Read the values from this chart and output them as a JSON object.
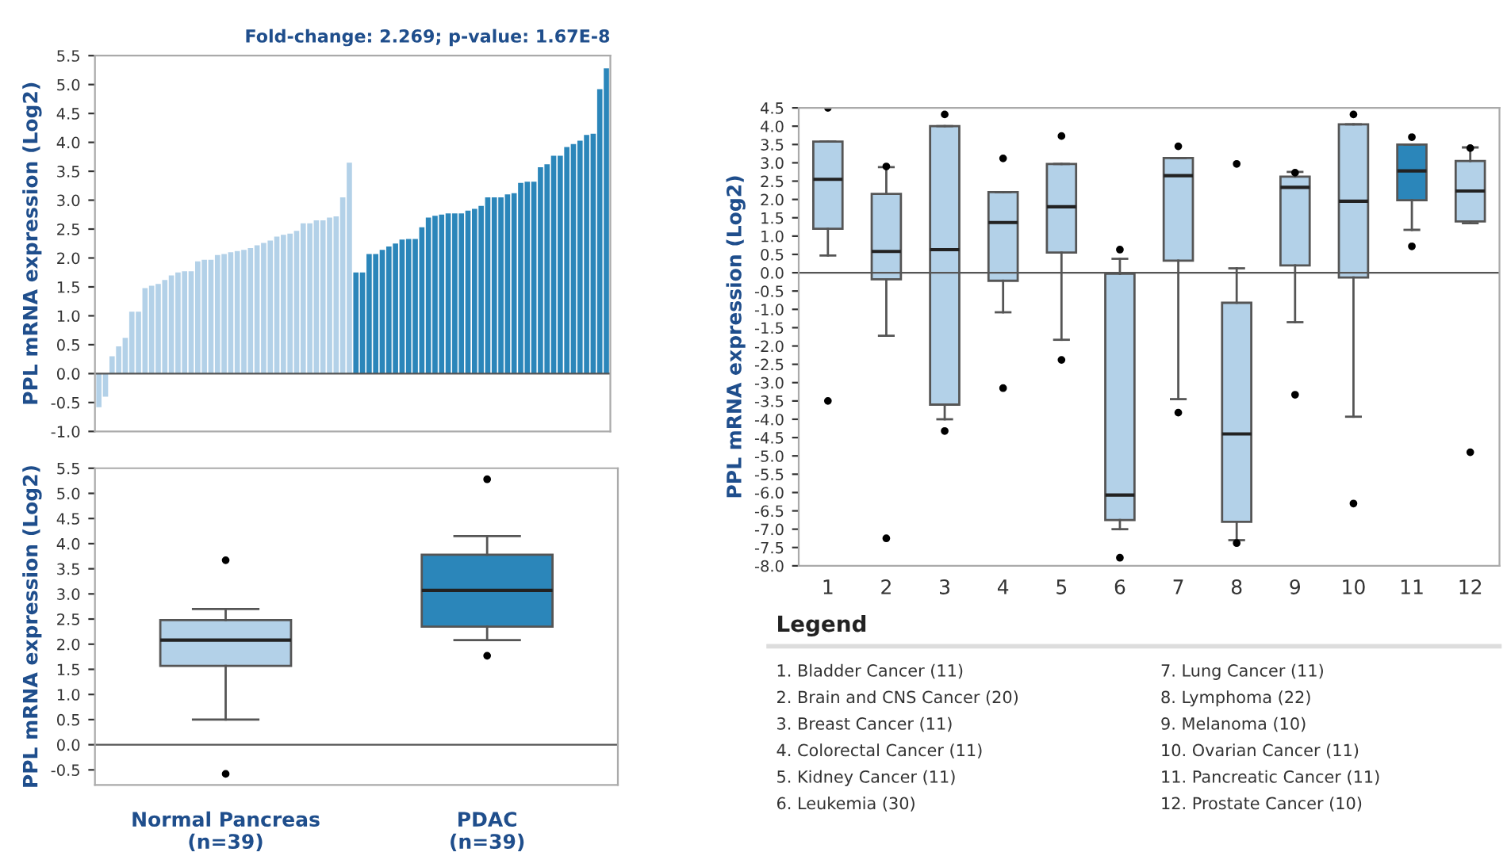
{
  "chart_data": [
    {
      "type": "bar",
      "title": "Fold-change: 2.269; p-value: 1.67E-8",
      "ylabel": "PPL mRNA expression (Log2)",
      "categories": [
        null,
        null,
        null,
        null,
        null,
        null,
        null,
        null,
        null,
        null,
        null,
        null,
        null,
        null,
        null,
        null,
        null,
        null,
        null,
        null,
        null,
        null,
        null,
        null,
        null,
        null,
        null,
        null,
        null,
        null,
        null,
        null,
        null,
        null,
        null,
        null,
        null,
        null,
        null,
        null,
        null,
        null,
        null,
        null,
        null,
        null,
        null,
        null,
        null,
        null,
        null,
        null,
        null,
        null,
        null,
        null,
        null,
        null,
        null,
        null,
        null,
        null,
        null,
        null,
        null,
        null,
        null,
        null,
        null,
        null,
        null,
        null,
        null,
        null,
        null,
        null,
        null,
        null
      ],
      "values": [
        -0.58,
        -0.4,
        0.3,
        0.47,
        0.62,
        1.07,
        1.07,
        1.48,
        1.52,
        1.55,
        1.62,
        1.7,
        1.75,
        1.77,
        1.77,
        1.94,
        1.97,
        1.97,
        2.05,
        2.07,
        2.1,
        2.12,
        2.14,
        2.17,
        2.22,
        2.26,
        2.3,
        2.37,
        2.4,
        2.42,
        2.47,
        2.6,
        2.6,
        2.65,
        2.65,
        2.7,
        2.72,
        3.05,
        3.65,
        1.75,
        1.75,
        2.07,
        2.07,
        2.14,
        2.2,
        2.25,
        2.32,
        2.33,
        2.33,
        2.53,
        2.7,
        2.73,
        2.75,
        2.77,
        2.77,
        2.77,
        2.82,
        2.85,
        2.9,
        3.05,
        3.05,
        3.05,
        3.1,
        3.12,
        3.3,
        3.32,
        3.32,
        3.57,
        3.62,
        3.77,
        3.77,
        3.92,
        3.97,
        4.03,
        4.13,
        4.15,
        4.92,
        5.28
      ],
      "colors": [
        "#b3d1e8",
        "#b3d1e8",
        "#b3d1e8",
        "#b3d1e8",
        "#b3d1e8",
        "#b3d1e8",
        "#b3d1e8",
        "#b3d1e8",
        "#b3d1e8",
        "#b3d1e8",
        "#b3d1e8",
        "#b3d1e8",
        "#b3d1e8",
        "#b3d1e8",
        "#b3d1e8",
        "#b3d1e8",
        "#b3d1e8",
        "#b3d1e8",
        "#b3d1e8",
        "#b3d1e8",
        "#b3d1e8",
        "#b3d1e8",
        "#b3d1e8",
        "#b3d1e8",
        "#b3d1e8",
        "#b3d1e8",
        "#b3d1e8",
        "#b3d1e8",
        "#b3d1e8",
        "#b3d1e8",
        "#b3d1e8",
        "#b3d1e8",
        "#b3d1e8",
        "#b3d1e8",
        "#b3d1e8",
        "#b3d1e8",
        "#b3d1e8",
        "#b3d1e8",
        "#b3d1e8",
        "#2b86ba",
        "#2b86ba",
        "#2b86ba",
        "#2b86ba",
        "#2b86ba",
        "#2b86ba",
        "#2b86ba",
        "#2b86ba",
        "#2b86ba",
        "#2b86ba",
        "#2b86ba",
        "#2b86ba",
        "#2b86ba",
        "#2b86ba",
        "#2b86ba",
        "#2b86ba",
        "#2b86ba",
        "#2b86ba",
        "#2b86ba",
        "#2b86ba",
        "#2b86ba",
        "#2b86ba",
        "#2b86ba",
        "#2b86ba",
        "#2b86ba",
        "#2b86ba",
        "#2b86ba",
        "#2b86ba",
        "#2b86ba",
        "#2b86ba",
        "#2b86ba",
        "#2b86ba",
        "#2b86ba",
        "#2b86ba",
        "#2b86ba",
        "#2b86ba",
        "#2b86ba",
        "#2b86ba",
        "#2b86ba"
      ],
      "ylim": [
        -1.0,
        5.5
      ],
      "yticks": [
        {
          "value": -1.0,
          "label": "-1.0"
        },
        {
          "value": -0.5,
          "label": "-0.5"
        },
        {
          "value": 0,
          "label": "0.0"
        },
        {
          "value": 0.5,
          "label": "0.5"
        },
        {
          "value": 1.0,
          "label": "1.0"
        },
        {
          "value": 1.5,
          "label": "1.5"
        },
        {
          "value": 2.0,
          "label": "2.0"
        },
        {
          "value": 2.5,
          "label": "2.5"
        },
        {
          "value": 3.0,
          "label": "3.0"
        },
        {
          "value": 3.5,
          "label": "3.5"
        },
        {
          "value": 4.0,
          "label": "4.0"
        },
        {
          "value": 4.5,
          "label": "4.5"
        },
        {
          "value": 5.0,
          "label": "5.0"
        },
        {
          "value": 5.5,
          "label": "5.5"
        }
      ],
      "ref_lines": [
        {
          "axis": "y",
          "value": 0
        }
      ]
    },
    {
      "type": "box",
      "ylabel": "PPL mRNA expression (Log2)",
      "categories": [
        "Normal Pancreas\n(n=39)",
        "PDAC\n(n=39)"
      ],
      "boxes": [
        {
          "low": 0.5,
          "q1": 1.57,
          "median": 2.08,
          "q3": 2.48,
          "high": 2.7,
          "outliers": [
            3.67,
            -0.58
          ]
        },
        {
          "low": 2.08,
          "q1": 2.35,
          "median": 3.07,
          "q3": 3.78,
          "high": 4.15,
          "outliers": [
            5.28,
            1.77
          ]
        }
      ],
      "colors": [
        "#b3d1e8",
        "#2b86ba"
      ],
      "ylim": [
        -0.8,
        5.5
      ],
      "yticks": [
        {
          "value": -0.5,
          "label": "-0.5"
        },
        {
          "value": 0,
          "label": "0.0"
        },
        {
          "value": 0.5,
          "label": "0.5"
        },
        {
          "value": 1.0,
          "label": "1.0"
        },
        {
          "value": 1.5,
          "label": "1.5"
        },
        {
          "value": 2.0,
          "label": "2.0"
        },
        {
          "value": 2.5,
          "label": "2.5"
        },
        {
          "value": 3.0,
          "label": "3.0"
        },
        {
          "value": 3.5,
          "label": "3.5"
        },
        {
          "value": 4.0,
          "label": "4.0"
        },
        {
          "value": 4.5,
          "label": "4.5"
        },
        {
          "value": 5.0,
          "label": "5.0"
        },
        {
          "value": 5.5,
          "label": "5.5"
        }
      ],
      "ref_lines": [
        {
          "axis": "y",
          "value": 0
        }
      ]
    },
    {
      "type": "box",
      "ylabel": "PPL mRNA expression (Log2)",
      "categories": [
        "1",
        "2",
        "3",
        "4",
        "5",
        "6",
        "7",
        "8",
        "9",
        "10",
        "11",
        "12"
      ],
      "boxes": [
        {
          "low": 0.47,
          "q1": 1.2,
          "median": 2.55,
          "q3": 3.58,
          "high": 3.58,
          "outliers": [
            4.5,
            -3.5
          ]
        },
        {
          "low": -1.72,
          "q1": -0.18,
          "median": 0.58,
          "q3": 2.15,
          "high": 2.88,
          "outliers": [
            2.9,
            -7.25
          ]
        },
        {
          "low": -4.0,
          "q1": -3.6,
          "median": 0.63,
          "q3": 4.0,
          "high": 4.0,
          "outliers": [
            4.32,
            -4.32
          ]
        },
        {
          "low": -1.08,
          "q1": -0.22,
          "median": 1.37,
          "q3": 2.2,
          "high": 2.2,
          "outliers": [
            3.12,
            -3.15
          ]
        },
        {
          "low": -1.83,
          "q1": 0.55,
          "median": 1.8,
          "q3": 2.97,
          "high": 2.97,
          "outliers": [
            3.73,
            -2.38
          ]
        },
        {
          "low": -7.0,
          "q1": -6.75,
          "median": -6.07,
          "q3": -0.03,
          "high": 0.38,
          "outliers": [
            0.63,
            -7.78
          ]
        },
        {
          "low": -3.45,
          "q1": 0.33,
          "median": 2.65,
          "q3": 3.13,
          "high": 3.13,
          "outliers": [
            3.45,
            -3.82
          ]
        },
        {
          "low": -7.3,
          "q1": -6.8,
          "median": -4.4,
          "q3": -0.82,
          "high": 0.12,
          "outliers": [
            2.97,
            -7.38
          ]
        },
        {
          "low": -1.35,
          "q1": 0.2,
          "median": 2.33,
          "q3": 2.62,
          "high": 2.75,
          "outliers": [
            2.73,
            -3.33
          ]
        },
        {
          "low": -3.93,
          "q1": -0.13,
          "median": 1.95,
          "q3": 4.05,
          "high": 4.05,
          "outliers": [
            4.32,
            -6.3
          ]
        },
        {
          "low": 1.17,
          "q1": 1.98,
          "median": 2.78,
          "q3": 3.5,
          "high": 3.5,
          "outliers": [
            3.7,
            0.72
          ]
        },
        {
          "low": 1.35,
          "q1": 1.4,
          "median": 2.23,
          "q3": 3.05,
          "high": 3.42,
          "outliers": [
            3.4,
            -4.9
          ]
        }
      ],
      "colors": [
        "#b3d1e8",
        "#b3d1e8",
        "#b3d1e8",
        "#b3d1e8",
        "#b3d1e8",
        "#b3d1e8",
        "#b3d1e8",
        "#b3d1e8",
        "#b3d1e8",
        "#b3d1e8",
        "#2b86ba",
        "#b3d1e8"
      ],
      "ylim": [
        -8.0,
        4.5
      ],
      "yticks": [
        {
          "value": -8.0,
          "label": "-8.0"
        },
        {
          "value": -7.5,
          "label": "-7.5"
        },
        {
          "value": -7.0,
          "label": "-7.0"
        },
        {
          "value": -6.5,
          "label": "-6.5"
        },
        {
          "value": -6.0,
          "label": "-6.0"
        },
        {
          "value": -5.5,
          "label": "-5.5"
        },
        {
          "value": -5.0,
          "label": "-5.0"
        },
        {
          "value": -4.5,
          "label": "-4.5"
        },
        {
          "value": -4.0,
          "label": "-4.0"
        },
        {
          "value": -3.5,
          "label": "-3.5"
        },
        {
          "value": -3.0,
          "label": "-3.0"
        },
        {
          "value": -2.5,
          "label": "-2.5"
        },
        {
          "value": -2.0,
          "label": "-2.0"
        },
        {
          "value": -1.5,
          "label": "-1.5"
        },
        {
          "value": -1.0,
          "label": "-1.0"
        },
        {
          "value": -0.5,
          "label": "-0.5"
        },
        {
          "value": 0,
          "label": "0.0"
        },
        {
          "value": 0.5,
          "label": "0.5"
        },
        {
          "value": 1.0,
          "label": "1.0"
        },
        {
          "value": 1.5,
          "label": "1.5"
        },
        {
          "value": 2.0,
          "label": "2.0"
        },
        {
          "value": 2.5,
          "label": "2.5"
        },
        {
          "value": 3.0,
          "label": "3.0"
        },
        {
          "value": 3.5,
          "label": "3.5"
        },
        {
          "value": 4.0,
          "label": "4.0"
        },
        {
          "value": 4.5,
          "label": "4.5"
        }
      ],
      "ref_lines": [
        {
          "axis": "y",
          "value": 0
        }
      ],
      "legend_title": "Legend",
      "annotations": [
        "1. Bladder Cancer (11)",
        "2. Brain and CNS Cancer (20)",
        "3. Breast Cancer (11)",
        "4. Colorectal Cancer (11)",
        "5. Kidney Cancer (11)",
        "6. Leukemia (30)",
        "7. Lung Cancer (11)",
        "8. Lymphoma (22)",
        "9. Melanoma (10)",
        "10. Ovarian Cancer (11)",
        "11. Pancreatic Cancer (11)",
        "12. Prostate Cancer (10)"
      ]
    }
  ]
}
